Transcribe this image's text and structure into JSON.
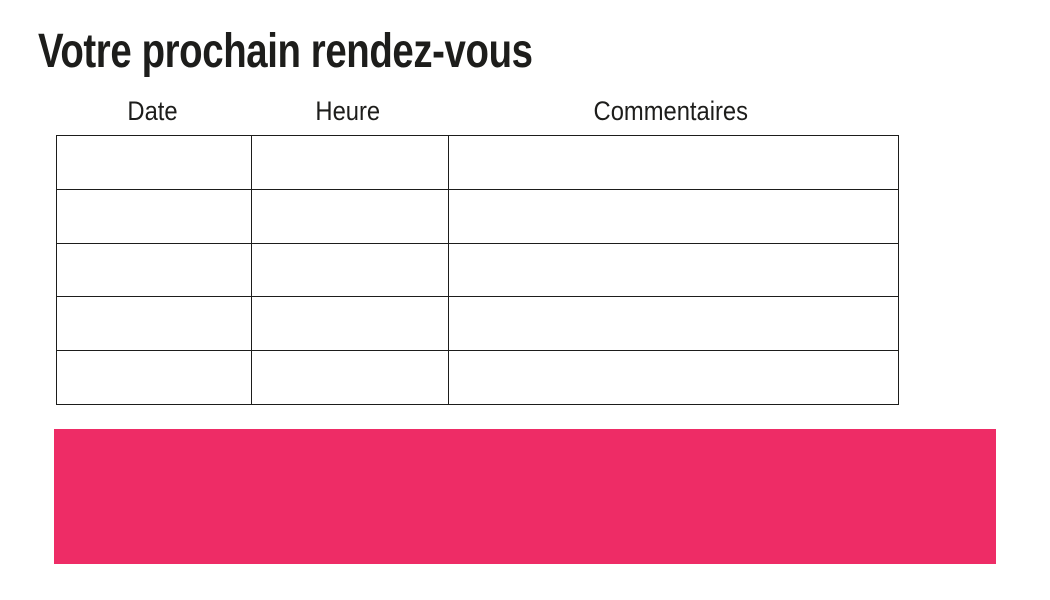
{
  "page": {
    "title": "Votre prochain rendez-vous"
  },
  "appointments_table": {
    "columns": [
      {
        "label": "Date"
      },
      {
        "label": "Heure"
      },
      {
        "label": "Commentaires"
      }
    ],
    "rows": [
      [
        "",
        "",
        ""
      ],
      [
        "",
        "",
        ""
      ],
      [
        "",
        "",
        ""
      ],
      [
        "",
        "",
        ""
      ],
      [
        "",
        "",
        ""
      ]
    ]
  },
  "banner": {
    "text": "",
    "color": "#EE2C66"
  },
  "colors": {
    "accent": "#EE2C66",
    "text": "#1D1D1B"
  }
}
